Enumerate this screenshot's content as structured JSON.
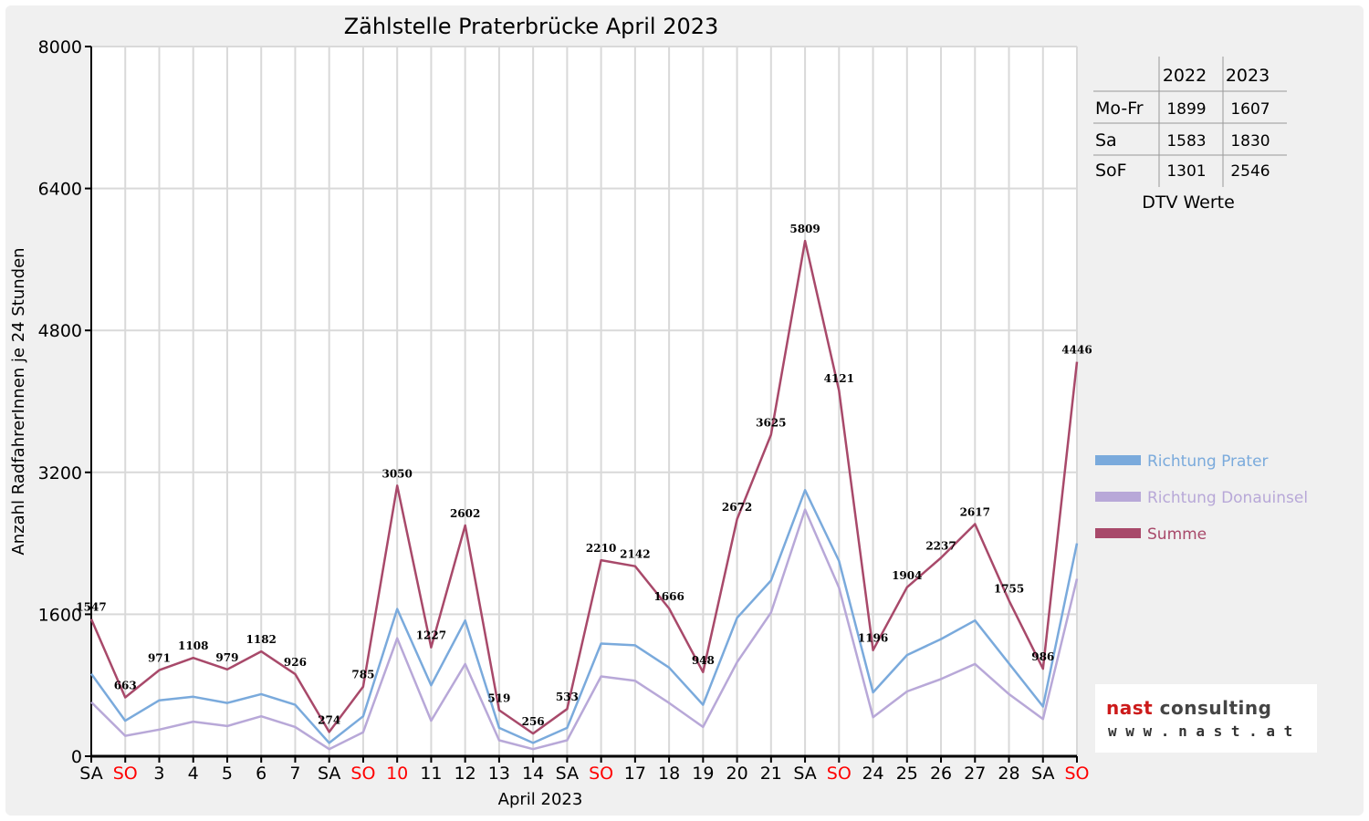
{
  "chart_data": {
    "type": "line",
    "title": "Zählstelle Praterbrücke April 2023",
    "xlabel": "April 2023",
    "ylabel": "Anzahl RadfahrerInnen je 24 Stunden",
    "ylim": [
      0,
      8000
    ],
    "yticks": [
      "0",
      "1600",
      "3200",
      "4800",
      "6400",
      "8000"
    ],
    "grid": true,
    "legend_position": "right",
    "categories": [
      "SA",
      "SO",
      "3",
      "4",
      "5",
      "6",
      "7",
      "SA",
      "SO",
      "10",
      "11",
      "12",
      "13",
      "14",
      "SA",
      "SO",
      "17",
      "18",
      "19",
      "20",
      "21",
      "SA",
      "SO",
      "24",
      "25",
      "26",
      "27",
      "28",
      "SA",
      "SO"
    ],
    "holiday_indices": [
      1,
      8,
      9,
      15,
      22,
      29
    ],
    "series": [
      {
        "name": "Richtung Prater",
        "color": "#7aaadc",
        "values": [
          930,
          400,
          630,
          670,
          600,
          700,
          580,
          150,
          450,
          1660,
          800,
          1530,
          320,
          150,
          320,
          1270,
          1250,
          1000,
          580,
          1560,
          1980,
          3000,
          2200,
          720,
          1140,
          1320,
          1530,
          null,
          560,
          2400
        ]
      },
      {
        "name": "Richtung Donauinsel",
        "color": "#b8a8d8",
        "values": [
          610,
          230,
          300,
          390,
          340,
          450,
          330,
          80,
          270,
          1330,
          400,
          1040,
          180,
          80,
          180,
          900,
          850,
          600,
          330,
          1060,
          1620,
          2780,
          1900,
          440,
          730,
          870,
          1040,
          700,
          420,
          2000
        ]
      },
      {
        "name": "Summe",
        "color": "#a8496a",
        "values": [
          1547,
          663,
          971,
          1108,
          979,
          1182,
          926,
          274,
          785,
          3050,
          1227,
          2602,
          519,
          256,
          533,
          2210,
          2142,
          1666,
          948,
          2672,
          3625,
          5809,
          4121,
          1196,
          1904,
          2237,
          2617,
          1755,
          986,
          4446
        ]
      }
    ],
    "data_labels": [
      "1547",
      "663",
      "971",
      "1108",
      "979",
      "1182",
      "926",
      "274",
      "785",
      "3050",
      "1227",
      "2602",
      "519",
      "256",
      "533",
      "2210",
      "2142",
      "1666",
      "948",
      "2672",
      "3625",
      "5809",
      "4121",
      "1196",
      "1904",
      "2237",
      "2617",
      "1755",
      "986",
      "4446"
    ]
  },
  "dtv_table": {
    "columns": [
      "2022",
      "2023"
    ],
    "rows": [
      {
        "label": "Mo-Fr",
        "v2022": "1899",
        "v2023": "1607"
      },
      {
        "label": "Sa",
        "v2022": "1583",
        "v2023": "1830"
      },
      {
        "label": "SoF",
        "v2022": "1301",
        "v2023": "2546"
      }
    ],
    "caption": "DTV Werte"
  },
  "logo": {
    "brand_red": "nast",
    "brand_rest": " consulting",
    "url": "www.nast.at"
  },
  "colors": {
    "holiday": "#ff0000",
    "text": "#000000",
    "grid": "#d9d9d9",
    "background": "#f0f0f0"
  }
}
